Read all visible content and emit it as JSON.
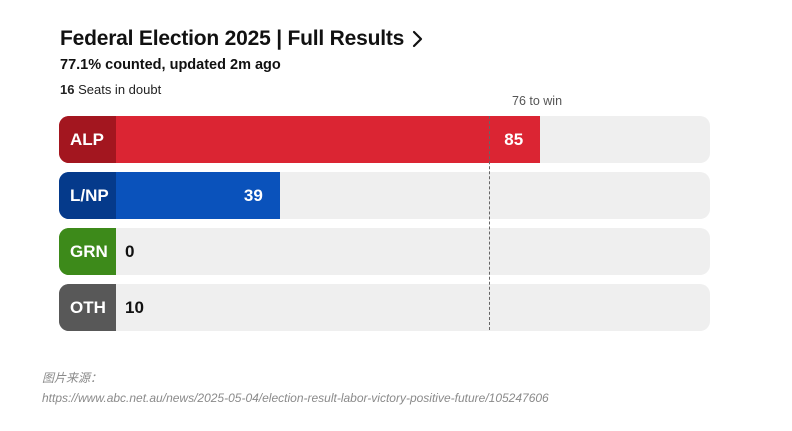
{
  "header": {
    "title": "Federal Election 2025 | Full Results",
    "subtitle": "77.1% counted, updated 2m ago",
    "doubt_count": "16",
    "doubt_text": " Seats in doubt"
  },
  "chart_data": {
    "type": "bar",
    "orientation": "horizontal",
    "title": "Federal Election 2025 | Full Results",
    "categories": [
      "ALP",
      "L/NP",
      "GRN",
      "OTH"
    ],
    "values": [
      85,
      39,
      0,
      10
    ],
    "xlim": [
      0,
      115
    ],
    "threshold": {
      "value": 76,
      "label": "76 to win"
    },
    "colors": {
      "ALP": {
        "fill": "#db2533",
        "label_bg": "#a3161f",
        "text": "#ffffff"
      },
      "L/NP": {
        "fill": "#0a52bb",
        "label_bg": "#053a8b",
        "text": "#ffffff"
      },
      "GRN": {
        "fill": "#4a9b22",
        "label_bg": "#3d8a1a",
        "text": "#111111"
      },
      "OTH": {
        "fill": "#777777",
        "label_bg": "#585858",
        "text": "#ffffff"
      }
    },
    "track_color": "#efefef"
  },
  "source": {
    "label": "图片来源：",
    "url": "https://www.abc.net.au/news/2025-05-04/election-result-labor-victory-positive-future/105247606"
  }
}
